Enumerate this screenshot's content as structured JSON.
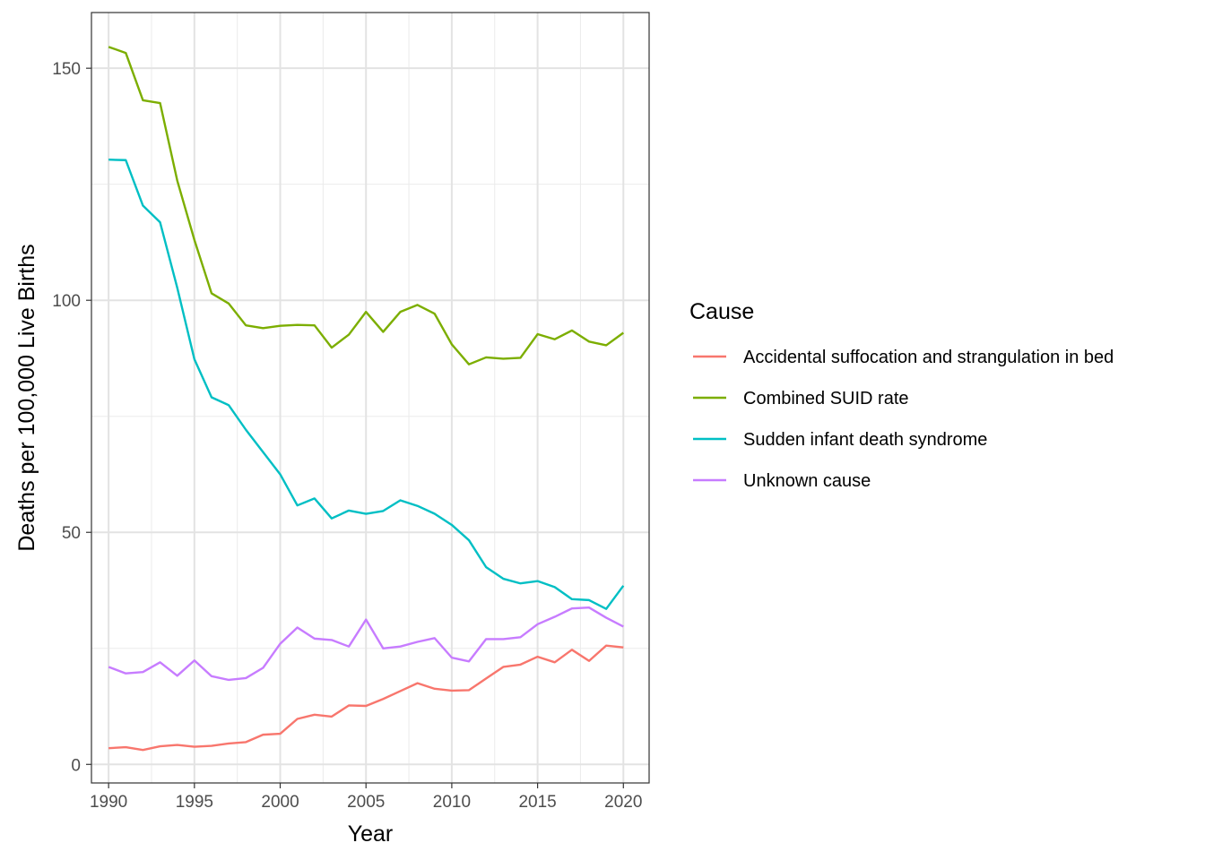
{
  "chart_data": {
    "type": "line",
    "xlabel": "Year",
    "ylabel": "Deaths per 100,000 Live Births",
    "xlim": [
      1989,
      2021.5
    ],
    "ylim": [
      -4,
      162
    ],
    "x_ticks": [
      1990,
      1995,
      2000,
      2005,
      2010,
      2015,
      2020
    ],
    "y_ticks": [
      0,
      50,
      100,
      150
    ],
    "grid": true,
    "legend": {
      "title": "Cause",
      "position": "right"
    },
    "x": [
      1990,
      1991,
      1992,
      1993,
      1994,
      1995,
      1996,
      1997,
      1998,
      1999,
      2000,
      2001,
      2002,
      2003,
      2004,
      2005,
      2006,
      2007,
      2008,
      2009,
      2010,
      2011,
      2012,
      2013,
      2014,
      2015,
      2016,
      2017,
      2018,
      2019,
      2020
    ],
    "series": [
      {
        "name": "Accidental suffocation and strangulation in bed",
        "color": "#F8766D",
        "values": [
          3.5,
          3.7,
          3.1,
          3.9,
          4.2,
          3.8,
          4.0,
          4.5,
          4.8,
          6.4,
          6.6,
          9.8,
          10.7,
          10.3,
          12.7,
          12.6,
          14.1,
          15.8,
          17.5,
          16.3,
          15.9,
          16.0,
          18.5,
          21.0,
          21.5,
          23.2,
          22.0,
          24.7,
          22.3,
          25.6,
          25.2
        ]
      },
      {
        "name": "Combined SUID rate",
        "color": "#7CAE00",
        "values": [
          154.6,
          153.3,
          143.1,
          142.5,
          125.8,
          113.0,
          101.5,
          99.3,
          94.6,
          94.0,
          94.5,
          94.7,
          94.6,
          89.8,
          92.6,
          97.5,
          93.2,
          97.5,
          99.0,
          97.1,
          90.5,
          86.2,
          87.7,
          87.4,
          87.6,
          92.7,
          91.6,
          93.5,
          91.1,
          90.3,
          93.0
        ]
      },
      {
        "name": "Sudden infant death syndrome",
        "color": "#00BFC4",
        "values": [
          130.3,
          130.2,
          120.4,
          116.8,
          102.7,
          87.3,
          79.1,
          77.4,
          72.1,
          67.3,
          62.5,
          55.8,
          57.3,
          53.0,
          54.7,
          54.0,
          54.6,
          56.9,
          55.7,
          54.0,
          51.6,
          48.3,
          42.5,
          40.0,
          39.0,
          39.5,
          38.2,
          35.6,
          35.4,
          33.5,
          38.5
        ]
      },
      {
        "name": "Unknown cause",
        "color": "#C77CFF",
        "values": [
          21.0,
          19.6,
          19.9,
          22.0,
          19.1,
          22.4,
          19.0,
          18.2,
          18.6,
          20.8,
          26.0,
          29.5,
          27.1,
          26.8,
          25.4,
          31.2,
          25.0,
          25.4,
          26.4,
          27.2,
          23.0,
          22.2,
          27.0,
          27.0,
          27.4,
          30.2,
          31.8,
          33.6,
          33.8,
          31.6,
          29.7
        ]
      }
    ]
  }
}
